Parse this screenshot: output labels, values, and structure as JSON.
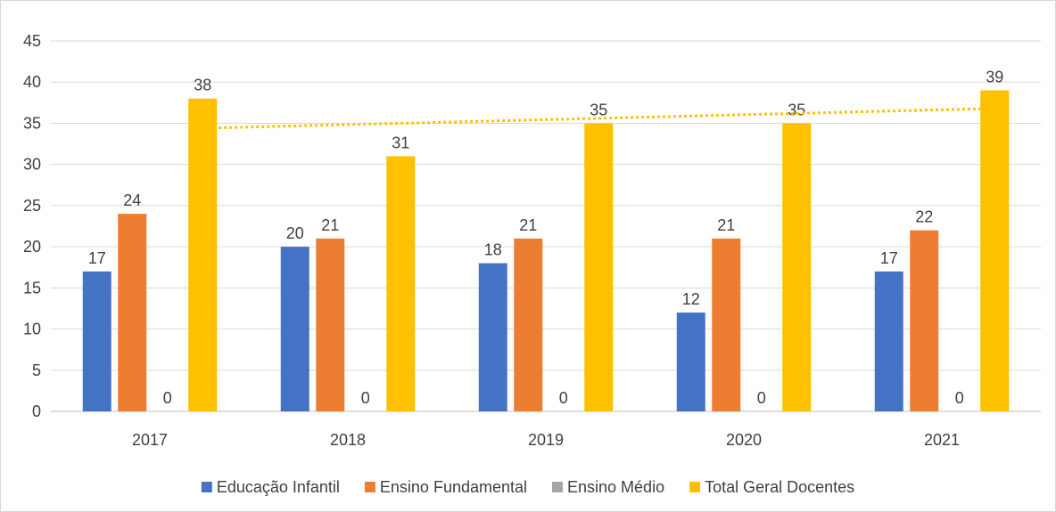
{
  "chart_data": {
    "type": "bar",
    "title": "",
    "xlabel": "",
    "ylabel": "",
    "categories": [
      "2017",
      "2018",
      "2019",
      "2020",
      "2021"
    ],
    "series": [
      {
        "name": "Educação Infantil",
        "values": [
          17,
          20,
          18,
          12,
          17
        ],
        "color": "#4472C4"
      },
      {
        "name": "Ensino Fundamental",
        "values": [
          24,
          21,
          21,
          21,
          22
        ],
        "color": "#ED7D31"
      },
      {
        "name": "Ensino Médio",
        "values": [
          0,
          0,
          0,
          0,
          0
        ],
        "color": "#A5A5A5"
      },
      {
        "name": "Total Geral Docentes",
        "values": [
          38,
          31,
          35,
          35,
          39
        ],
        "color": "#FFC000"
      }
    ],
    "trendline": {
      "series": "Total Geral Docentes",
      "kind": "linear",
      "style": "dotted",
      "color": "#FFC000"
    },
    "ylim": [
      0,
      45
    ],
    "yticks": [
      0,
      5,
      10,
      15,
      20,
      25,
      30,
      35,
      40,
      45
    ],
    "grid": true,
    "legend_position": "bottom"
  }
}
